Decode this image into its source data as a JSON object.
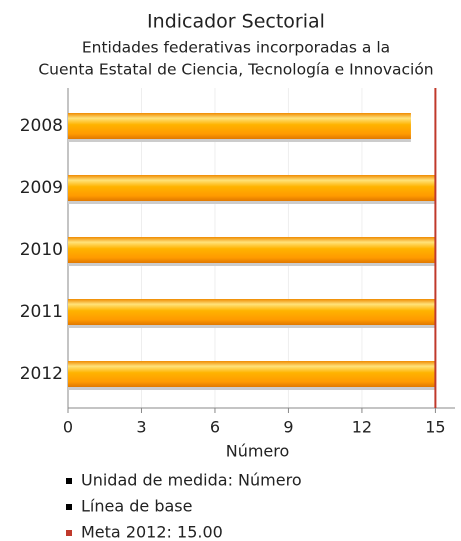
{
  "chart_data": {
    "type": "bar",
    "orientation": "horizontal",
    "title": "Indicador Sectorial",
    "subtitle": [
      "Entidades federativas incorporadas a la",
      "Cuenta Estatal de Ciencia, Tecnología e Innovación"
    ],
    "categories": [
      "2008",
      "2009",
      "2010",
      "2011",
      "2012"
    ],
    "values": [
      14,
      15,
      15,
      15,
      15
    ],
    "color": "#ff9900",
    "xlabel": "Número",
    "xlim": [
      0,
      15.8
    ],
    "xticks": [
      0,
      3,
      6,
      9,
      12,
      15
    ],
    "grid": true,
    "reference_line": {
      "value": 15,
      "color": "#c0392b"
    },
    "legend": [
      {
        "label": "Unidad de medida: Número",
        "color": "#000000"
      },
      {
        "label": "Línea de base",
        "color": "#000000"
      },
      {
        "label": "Meta 2012: 15.00",
        "color": "#c0392b"
      }
    ]
  }
}
